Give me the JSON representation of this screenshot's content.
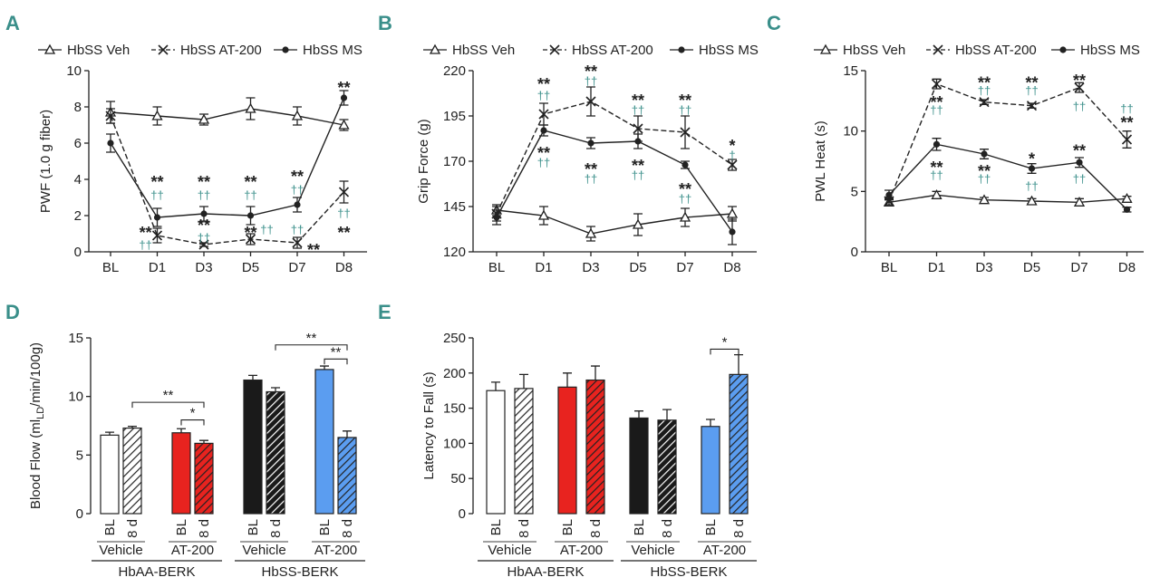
{
  "figure": {
    "panel_labels": [
      "A",
      "B",
      "C",
      "D",
      "E"
    ]
  },
  "colors": {
    "ink": "#222222",
    "dagger": "#3a8f8a",
    "red": "#e8231f",
    "black": "#1a1a1a",
    "blue": "#5b9df0",
    "white": "#ffffff"
  },
  "chart_data": [
    {
      "id": "A",
      "type": "line",
      "title": "",
      "xlabel": "",
      "ylabel": "PWF (1.0 g fiber)",
      "categories": [
        "BL",
        "D1",
        "D3",
        "D5",
        "D7",
        "D8"
      ],
      "ylim": [
        0,
        10
      ],
      "yticks": [
        0,
        2,
        4,
        6,
        8,
        10
      ],
      "legend": [
        "HbSS Veh",
        "HbSS AT-200",
        "HbSS MS"
      ],
      "series": [
        {
          "name": "HbSS Veh",
          "marker": "triangle",
          "dash": false,
          "values": [
            7.7,
            7.5,
            7.3,
            7.9,
            7.5,
            7.0
          ],
          "err": [
            0.6,
            0.5,
            0.3,
            0.6,
            0.5,
            0.3
          ]
        },
        {
          "name": "HbSS AT-200",
          "marker": "x",
          "dash": true,
          "values": [
            7.5,
            0.9,
            0.4,
            0.7,
            0.5,
            3.3
          ],
          "err": [
            0.4,
            0.4,
            0.1,
            0.3,
            0.3,
            0.6
          ]
        },
        {
          "name": "HbSS MS",
          "marker": "dot",
          "dash": false,
          "values": [
            6.0,
            1.9,
            2.1,
            2.0,
            2.6,
            8.5
          ],
          "err": [
            0.5,
            0.5,
            0.4,
            0.5,
            0.4,
            0.4
          ]
        }
      ],
      "annotations": [
        {
          "text": "**",
          "cat": 1,
          "y": 4.0,
          "color": "ink"
        },
        {
          "text": "††",
          "cat": 1,
          "y": 3.1,
          "color": "dagger"
        },
        {
          "text": "**",
          "cat": 2,
          "y": 4.0,
          "color": "ink"
        },
        {
          "text": "††",
          "cat": 2,
          "y": 3.1,
          "color": "dagger"
        },
        {
          "text": "**",
          "cat": 3,
          "y": 4.0,
          "color": "ink"
        },
        {
          "text": "††",
          "cat": 3,
          "y": 3.1,
          "color": "dagger"
        },
        {
          "text": "**",
          "cat": 4,
          "y": 4.3,
          "color": "ink"
        },
        {
          "text": "††",
          "cat": 4,
          "y": 3.4,
          "color": "dagger"
        },
        {
          "text": "**",
          "cat": 5,
          "y": 9.2,
          "color": "ink"
        },
        {
          "text": "**",
          "cat": 0.75,
          "y": 1.2,
          "color": "ink"
        },
        {
          "text": "††",
          "cat": 0.75,
          "y": 0.35,
          "color": "dagger"
        },
        {
          "text": "**",
          "cat": 2,
          "y": 1.6,
          "color": "ink"
        },
        {
          "text": "††",
          "cat": 2,
          "y": 0.75,
          "color": "dagger"
        },
        {
          "text": "**",
          "cat": 3,
          "y": 1.2,
          "color": "ink"
        },
        {
          "text": "††",
          "cat": 3.35,
          "y": 1.2,
          "color": "dagger"
        },
        {
          "text": "††",
          "cat": 4,
          "y": 1.2,
          "color": "dagger"
        },
        {
          "text": "**",
          "cat": 4.35,
          "y": 0.25,
          "color": "ink"
        },
        {
          "text": "††",
          "cat": 5,
          "y": 2.1,
          "color": "dagger"
        },
        {
          "text": "**",
          "cat": 5,
          "y": 1.2,
          "color": "ink"
        }
      ]
    },
    {
      "id": "B",
      "type": "line",
      "title": "",
      "xlabel": "",
      "ylabel": "Grip Force (g)",
      "categories": [
        "BL",
        "D1",
        "D3",
        "D5",
        "D7",
        "D8"
      ],
      "ylim": [
        120,
        220
      ],
      "yticks": [
        120,
        145,
        170,
        195,
        220
      ],
      "legend": [
        "HbSS Veh",
        "HbSS AT-200",
        "HbSS MS"
      ],
      "series": [
        {
          "name": "HbSS Veh",
          "marker": "triangle",
          "dash": false,
          "values": [
            143,
            140,
            130,
            135,
            139,
            141
          ],
          "err": [
            3,
            5,
            4,
            6,
            5,
            4
          ]
        },
        {
          "name": "HbSS AT-200",
          "marker": "x",
          "dash": true,
          "values": [
            141,
            196,
            203,
            188,
            186,
            168
          ],
          "err": [
            4,
            6,
            8,
            7,
            9,
            3
          ]
        },
        {
          "name": "HbSS MS",
          "marker": "dot",
          "dash": false,
          "values": [
            139,
            187,
            180,
            181,
            168,
            131
          ],
          "err": [
            4,
            3,
            3,
            4,
            2,
            7
          ]
        }
      ],
      "annotations": [
        {
          "text": "**",
          "cat": 1,
          "y": 214,
          "color": "ink"
        },
        {
          "text": "††",
          "cat": 1,
          "y": 206,
          "color": "dagger"
        },
        {
          "text": "**",
          "cat": 2,
          "y": 221,
          "color": "ink"
        },
        {
          "text": "††",
          "cat": 2,
          "y": 214,
          "color": "dagger"
        },
        {
          "text": "**",
          "cat": 3,
          "y": 205,
          "color": "ink"
        },
        {
          "text": "††",
          "cat": 3,
          "y": 198,
          "color": "dagger"
        },
        {
          "text": "**",
          "cat": 4,
          "y": 205,
          "color": "ink"
        },
        {
          "text": "††",
          "cat": 4,
          "y": 198,
          "color": "dagger"
        },
        {
          "text": "*",
          "cat": 5,
          "y": 180,
          "color": "ink"
        },
        {
          "text": "†",
          "cat": 5,
          "y": 173,
          "color": "dagger"
        },
        {
          "text": "**",
          "cat": 1,
          "y": 176,
          "color": "ink"
        },
        {
          "text": "††",
          "cat": 1,
          "y": 169,
          "color": "dagger"
        },
        {
          "text": "**",
          "cat": 2,
          "y": 167,
          "color": "ink"
        },
        {
          "text": "††",
          "cat": 2,
          "y": 160,
          "color": "dagger"
        },
        {
          "text": "**",
          "cat": 3,
          "y": 169,
          "color": "ink"
        },
        {
          "text": "††",
          "cat": 3,
          "y": 162,
          "color": "dagger"
        },
        {
          "text": "**",
          "cat": 4,
          "y": 156,
          "color": "ink"
        },
        {
          "text": "††",
          "cat": 4,
          "y": 149,
          "color": "dagger"
        }
      ]
    },
    {
      "id": "C",
      "type": "line",
      "title": "",
      "xlabel": "",
      "ylabel": "PWL Heat (s)",
      "categories": [
        "BL",
        "D1",
        "D3",
        "D5",
        "D7",
        "D8"
      ],
      "ylim": [
        0,
        15
      ],
      "yticks": [
        0,
        5,
        10,
        15
      ],
      "legend": [
        "HbSS Veh",
        "HbSS AT-200",
        "HbSS MS"
      ],
      "series": [
        {
          "name": "HbSS Veh",
          "marker": "triangle",
          "dash": false,
          "values": [
            4.1,
            4.7,
            4.3,
            4.2,
            4.1,
            4.4
          ],
          "err": [
            0.3,
            0.3,
            0.2,
            0.2,
            0.3,
            0.2
          ]
        },
        {
          "name": "HbSS AT-200",
          "marker": "x",
          "dash": true,
          "values": [
            4.2,
            13.9,
            12.4,
            12.1,
            13.6,
            9.3
          ],
          "err": [
            0.3,
            0.4,
            0.2,
            0.2,
            0.4,
            0.7
          ]
        },
        {
          "name": "HbSS MS",
          "marker": "dot",
          "dash": false,
          "values": [
            4.7,
            8.9,
            8.1,
            6.9,
            7.4,
            3.5
          ],
          "err": [
            0.4,
            0.5,
            0.4,
            0.4,
            0.4,
            0.2
          ]
        }
      ],
      "annotations": [
        {
          "text": "**",
          "cat": 1,
          "y": 12.6,
          "color": "ink"
        },
        {
          "text": "††",
          "cat": 1,
          "y": 11.7,
          "color": "dagger"
        },
        {
          "text": "**",
          "cat": 2,
          "y": 14.2,
          "color": "ink"
        },
        {
          "text": "††",
          "cat": 2,
          "y": 13.3,
          "color": "dagger"
        },
        {
          "text": "**",
          "cat": 3,
          "y": 14.2,
          "color": "ink"
        },
        {
          "text": "††",
          "cat": 3,
          "y": 13.3,
          "color": "dagger"
        },
        {
          "text": "**",
          "cat": 4,
          "y": 14.4,
          "color": "ink"
        },
        {
          "text": "††",
          "cat": 4,
          "y": 12.0,
          "color": "dagger"
        },
        {
          "text": "††",
          "cat": 5,
          "y": 11.8,
          "color": "dagger"
        },
        {
          "text": "**",
          "cat": 5,
          "y": 10.9,
          "color": "ink"
        },
        {
          "text": "**",
          "cat": 1,
          "y": 7.2,
          "color": "ink"
        },
        {
          "text": "††",
          "cat": 1,
          "y": 6.3,
          "color": "dagger"
        },
        {
          "text": "**",
          "cat": 2,
          "y": 6.9,
          "color": "ink"
        },
        {
          "text": "††",
          "cat": 2,
          "y": 6.0,
          "color": "dagger"
        },
        {
          "text": "*",
          "cat": 3,
          "y": 7.9,
          "color": "ink"
        },
        {
          "text": "††",
          "cat": 3,
          "y": 5.4,
          "color": "dagger"
        },
        {
          "text": "**",
          "cat": 4,
          "y": 8.6,
          "color": "ink"
        },
        {
          "text": "††",
          "cat": 4,
          "y": 6.0,
          "color": "dagger"
        }
      ]
    },
    {
      "id": "D",
      "type": "bar",
      "title": "",
      "xlabel": "",
      "ylabel": "Blood Flow (ml",
      "ylabel_sub": "LD",
      "ylabel_tail": "/min/100g)",
      "ylim": [
        0,
        15
      ],
      "yticks": [
        0,
        5,
        10,
        15
      ],
      "bars": [
        {
          "label": "BL",
          "value": 6.7,
          "err": 0.25,
          "color": "white",
          "hatch": false
        },
        {
          "label": "8 d",
          "value": 7.3,
          "err": 0.15,
          "color": "white",
          "hatch": true
        },
        {
          "label": "BL",
          "value": 6.9,
          "err": 0.35,
          "color": "red",
          "hatch": false
        },
        {
          "label": "8 d",
          "value": 6.0,
          "err": 0.25,
          "color": "red",
          "hatch": true
        },
        {
          "label": "BL",
          "value": 11.4,
          "err": 0.4,
          "color": "black",
          "hatch": false
        },
        {
          "label": "8 d",
          "value": 10.4,
          "err": 0.35,
          "color": "black",
          "hatch": true
        },
        {
          "label": "BL",
          "value": 12.3,
          "err": 0.3,
          "color": "blue",
          "hatch": false
        },
        {
          "label": "8 d",
          "value": 6.5,
          "err": 0.55,
          "color": "blue",
          "hatch": true
        }
      ],
      "treatments": [
        "Vehicle",
        "AT-200",
        "Vehicle",
        "AT-200"
      ],
      "strains": [
        "HbAA-BERK",
        "HbSS-BERK"
      ],
      "brackets": [
        {
          "from": 1,
          "to": 3,
          "y": 9.5,
          "text": "**"
        },
        {
          "from": 2,
          "to": 3,
          "y": 8.0,
          "text": "*"
        },
        {
          "from": 5,
          "to": 7,
          "y": 14.4,
          "text": "**"
        },
        {
          "from": 6,
          "to": 7,
          "y": 13.2,
          "text": "**"
        }
      ]
    },
    {
      "id": "E",
      "type": "bar",
      "title": "",
      "xlabel": "",
      "ylabel": "Latency to Fall (s)",
      "ylim": [
        0,
        250
      ],
      "yticks": [
        0,
        50,
        100,
        150,
        200,
        250
      ],
      "bars": [
        {
          "label": "BL",
          "value": 175,
          "err": 12,
          "color": "white",
          "hatch": false
        },
        {
          "label": "8 d",
          "value": 178,
          "err": 20,
          "color": "white",
          "hatch": true
        },
        {
          "label": "BL",
          "value": 180,
          "err": 20,
          "color": "red",
          "hatch": false
        },
        {
          "label": "8 d",
          "value": 190,
          "err": 20,
          "color": "red",
          "hatch": true
        },
        {
          "label": "BL",
          "value": 136,
          "err": 10,
          "color": "black",
          "hatch": false
        },
        {
          "label": "8 d",
          "value": 133,
          "err": 15,
          "color": "black",
          "hatch": true
        },
        {
          "label": "BL",
          "value": 124,
          "err": 10,
          "color": "blue",
          "hatch": false
        },
        {
          "label": "8 d",
          "value": 198,
          "err": 28,
          "color": "blue",
          "hatch": true
        }
      ],
      "treatments": [
        "Vehicle",
        "AT-200",
        "Vehicle",
        "AT-200"
      ],
      "strains": [
        "HbAA-BERK",
        "HbSS-BERK"
      ],
      "brackets": [
        {
          "from": 6,
          "to": 7,
          "y": 234,
          "text": "*"
        }
      ]
    }
  ]
}
